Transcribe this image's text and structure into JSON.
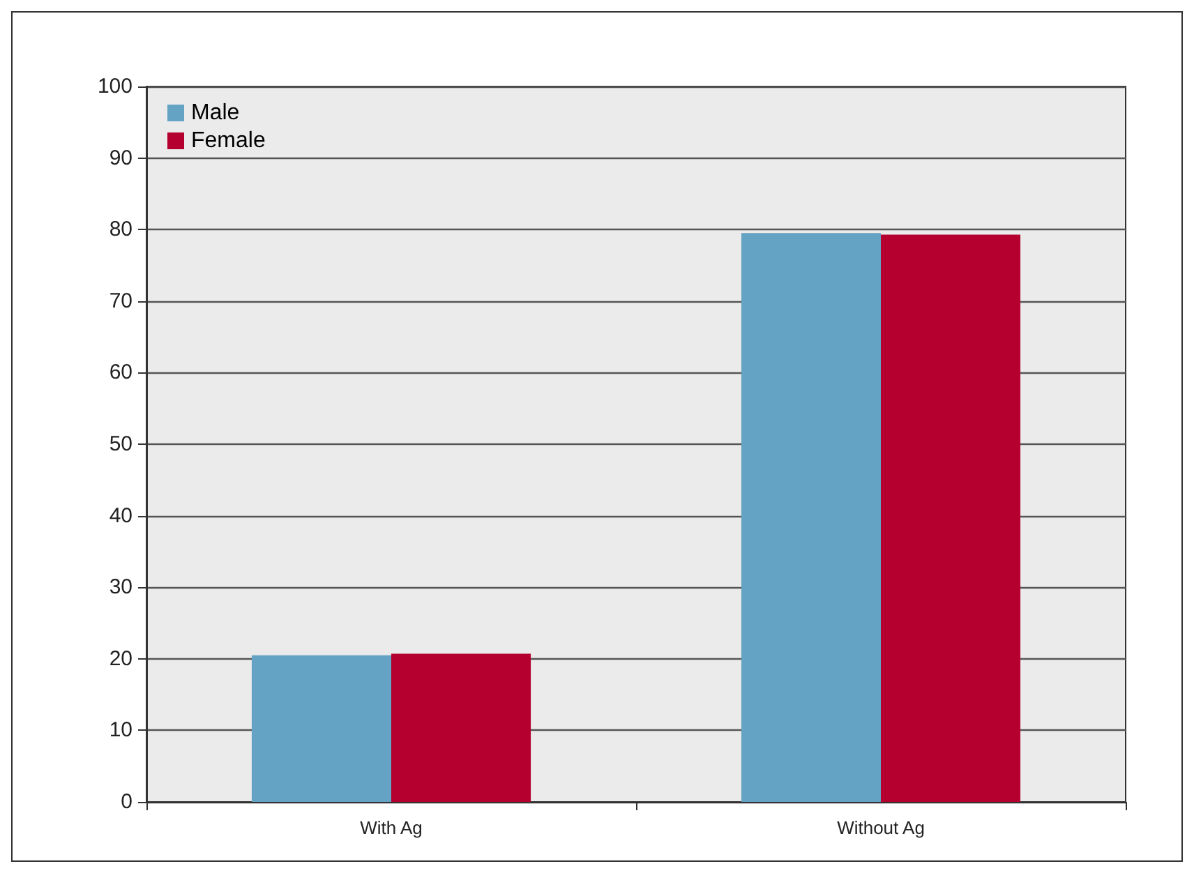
{
  "chart_data": {
    "type": "bar",
    "categories": [
      "With Ag",
      "Without Ag"
    ],
    "series": [
      {
        "name": "Male",
        "color": "#64a3c3",
        "values": [
          20.5,
          79.5
        ]
      },
      {
        "name": "Female",
        "color": "#b5002f",
        "values": [
          20.7,
          79.3
        ]
      }
    ],
    "ylim": [
      0,
      100
    ],
    "yticks": [
      0,
      10,
      20,
      30,
      40,
      50,
      60,
      70,
      80,
      90,
      100
    ],
    "grid": "y",
    "legend": "top left"
  }
}
